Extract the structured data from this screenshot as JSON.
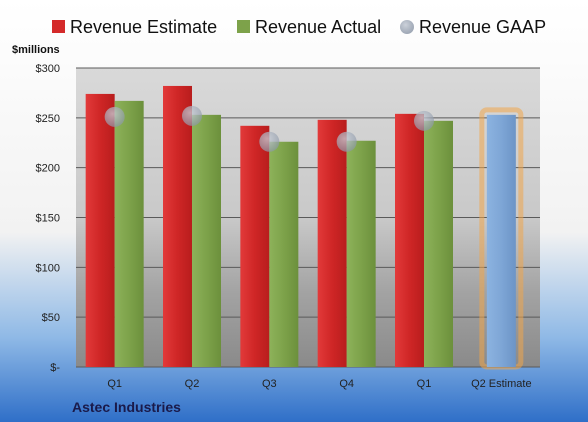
{
  "company": "Astec Industries",
  "colors": {
    "estimate": "#d42a2a",
    "actual": "#7da24a",
    "gaap": "#9aa4b4",
    "projected": "#7ea6d6",
    "projected_glow": "#f0a64a"
  },
  "chart_data": {
    "type": "bar",
    "unit_label": "$millions",
    "categories": [
      "Q1",
      "Q2",
      "Q3",
      "Q4",
      "Q1",
      "Q2 Estimate"
    ],
    "ylim": [
      0,
      300
    ],
    "yticks": [
      0,
      50,
      100,
      150,
      200,
      250,
      300
    ],
    "ytick_labels": [
      "$-",
      "$50",
      "$100",
      "$150",
      "$200",
      "$250",
      "$300"
    ],
    "grid": true,
    "legend_position": "top",
    "series": [
      {
        "name": "Revenue Estimate",
        "type": "bar",
        "values": [
          274,
          282,
          242,
          248,
          254,
          null
        ]
      },
      {
        "name": "Revenue Actual",
        "type": "bar",
        "values": [
          267,
          253,
          226,
          227,
          247,
          253
        ]
      },
      {
        "name": "Revenue GAAP",
        "type": "marker",
        "values": [
          251,
          252,
          226,
          226,
          247,
          null
        ]
      }
    ],
    "projected_category": "Q2 Estimate"
  }
}
